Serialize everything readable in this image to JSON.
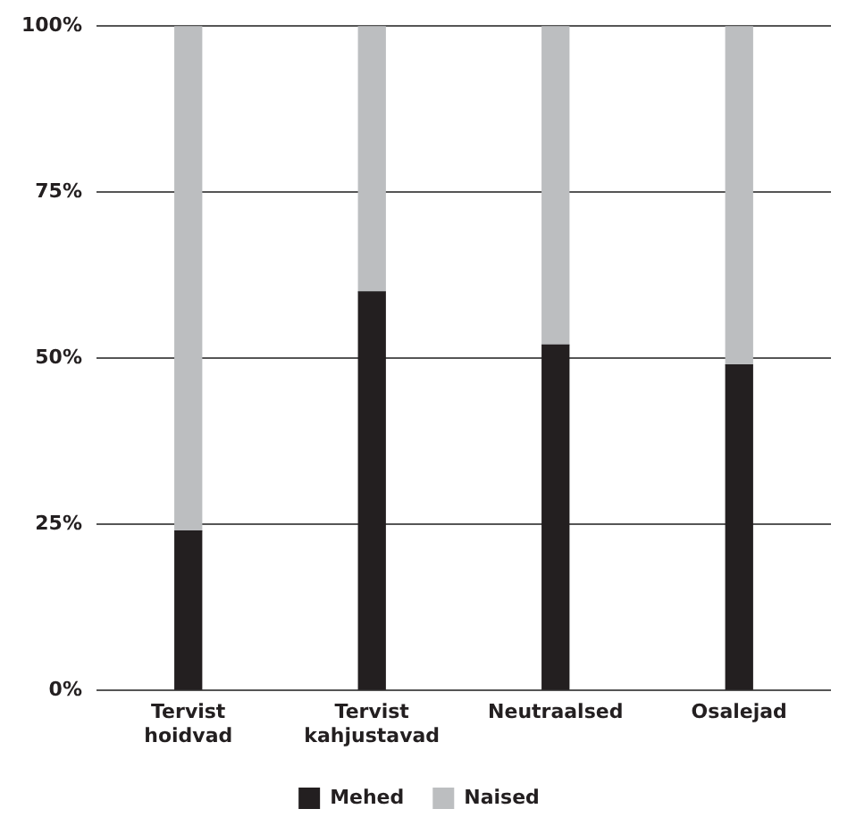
{
  "chart_data": {
    "type": "bar",
    "stacked": true,
    "categories": [
      [
        "Tervist",
        "hoidvad"
      ],
      [
        "Tervist",
        "kahjustavad"
      ],
      "Neutraalsed",
      "Osalejad"
    ],
    "series": [
      {
        "name": "Mehed",
        "color": "#231f20",
        "values": [
          24,
          60,
          52,
          49
        ]
      },
      {
        "name": "Naised",
        "color": "#bcbec0",
        "values": [
          76,
          40,
          48,
          51
        ]
      }
    ],
    "ylim": [
      0,
      100
    ],
    "yticks": [
      {
        "value": 0,
        "label": "0%"
      },
      {
        "value": 25,
        "label": "25%"
      },
      {
        "value": 50,
        "label": "50%"
      },
      {
        "value": 75,
        "label": "75%"
      },
      {
        "value": 100,
        "label": "100%"
      }
    ],
    "grid": "y",
    "legend": "bottom"
  }
}
